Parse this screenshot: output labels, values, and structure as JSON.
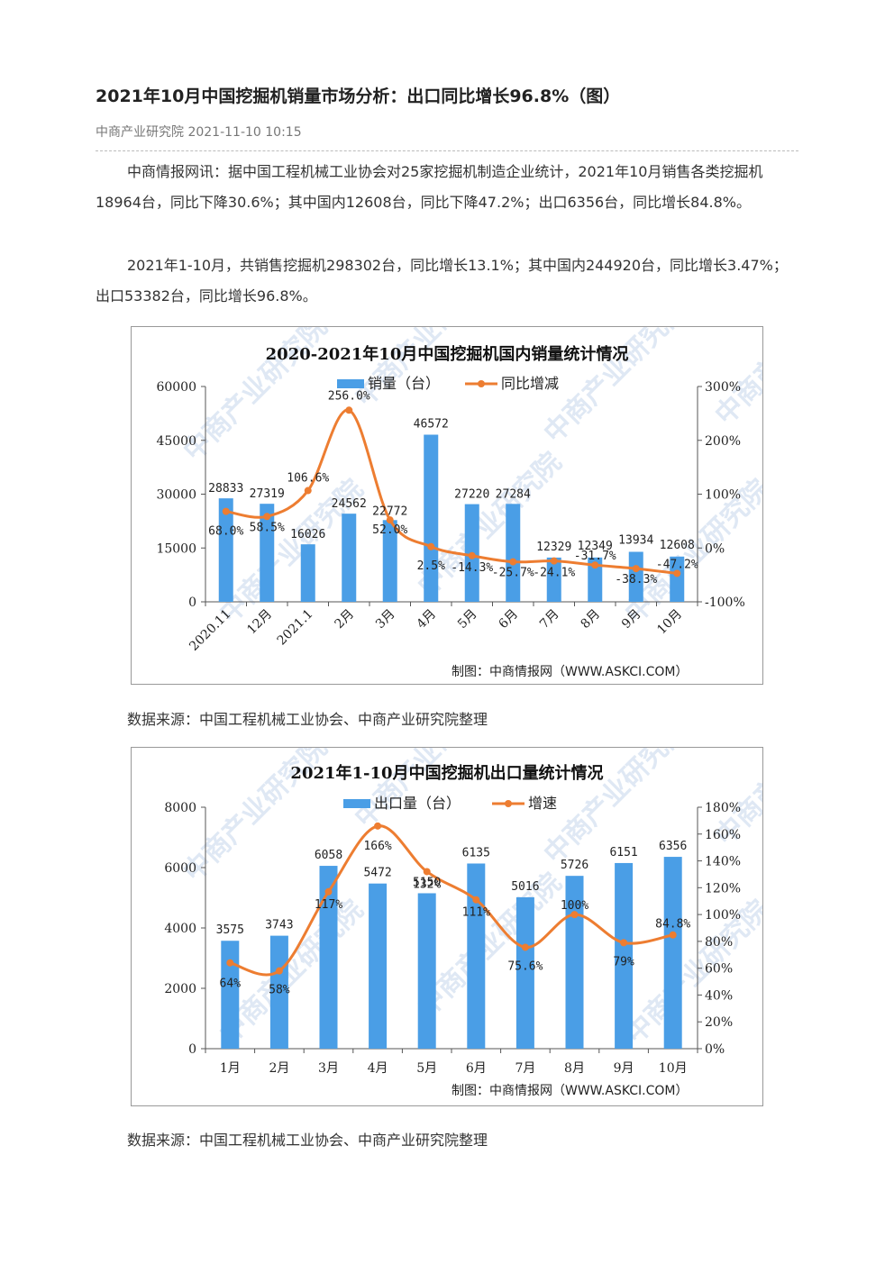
{
  "article": {
    "title": "2021年10月中国挖掘机销量市场分析：出口同比增长96.8%（图）",
    "meta": "中商产业研究院 2021-11-10 10:15",
    "paragraph1": "中商情报网讯：据中国工程机械工业协会对25家挖掘机制造企业统计，2021年10月销售各类挖掘机18964台，同比下降30.6%；其中国内12608台，同比下降47.2%；出口6356台，同比增长84.8%。",
    "paragraph2": "2021年1-10月，共销售挖掘机298302台，同比增长13.1%；其中国内244920台，同比增长3.47%；出口53382台，同比增长96.8%。",
    "source1": "数据来源：中国工程机械工业协会、中商产业研究院整理",
    "source2": "数据来源：中国工程机械工业协会、中商产业研究院整理"
  },
  "colors": {
    "bar": "#4a9ee6",
    "line": "#ed7d31",
    "watermark": "#dfe8f4"
  },
  "watermark_text": "中商产业研究院",
  "chart_data": [
    {
      "type": "bar",
      "title": "2020-2021年10月中国挖掘机国内销量统计情况",
      "credit": "制图：中商情报网（WWW.ASKCI.COM）",
      "categories": [
        "2020.11",
        "12月",
        "2021.1",
        "2月",
        "3月",
        "4月",
        "5月",
        "6月",
        "7月",
        "8月",
        "9月",
        "10月"
      ],
      "series": [
        {
          "name": "销量（台）",
          "axis": "left",
          "kind": "bar",
          "values": [
            28833,
            27319,
            16026,
            24562,
            22772,
            46572,
            27220,
            27284,
            12329,
            12349,
            13934,
            12608
          ]
        },
        {
          "name": "同比增减",
          "axis": "right",
          "kind": "line",
          "values": [
            68.0,
            58.5,
            106.6,
            256.0,
            52.0,
            2.5,
            -14.3,
            -25.7,
            -24.1,
            -31.7,
            -38.3,
            -47.2
          ],
          "labels": [
            "68.0%",
            "58.5%",
            "106.6%",
            "256.0%",
            "52.0%",
            "2.5%",
            "-14.3%",
            "-25.7%",
            "-24.1%",
            "-31.7%",
            "-38.3%",
            "-47.2%"
          ]
        }
      ],
      "ylim_left": [
        0,
        60000
      ],
      "yticks_left": [
        "0",
        "15000",
        "30000",
        "45000",
        "60000"
      ],
      "ylim_right": [
        -100,
        300
      ],
      "yticks_right": [
        "-100%",
        "0%",
        "100%",
        "200%",
        "300%"
      ],
      "legend_position": "top",
      "grid": false
    },
    {
      "type": "bar",
      "title": "2021年1-10月中国挖掘机出口量统计情况",
      "credit": "制图：中商情报网（WWW.ASKCI.COM）",
      "categories": [
        "1月",
        "2月",
        "3月",
        "4月",
        "5月",
        "6月",
        "7月",
        "8月",
        "9月",
        "10月"
      ],
      "series": [
        {
          "name": "出口量（台）",
          "axis": "left",
          "kind": "bar",
          "values": [
            3575,
            3743,
            6058,
            5472,
            5150,
            6135,
            5016,
            5726,
            6151,
            6356
          ]
        },
        {
          "name": "增速",
          "axis": "right",
          "kind": "line",
          "values": [
            64,
            58,
            117,
            166,
            132,
            111,
            75.6,
            100,
            79,
            84.8
          ],
          "labels": [
            "64%",
            "58%",
            "117%",
            "166%",
            "132%",
            "111%",
            "75.6%",
            "100%",
            "79%",
            "84.8%"
          ]
        }
      ],
      "ylim_left": [
        0,
        8000
      ],
      "yticks_left": [
        "0",
        "2000",
        "4000",
        "6000",
        "8000"
      ],
      "ylim_right": [
        0,
        180
      ],
      "yticks_right": [
        "0%",
        "20%",
        "40%",
        "60%",
        "80%",
        "100%",
        "120%",
        "140%",
        "160%",
        "180%"
      ],
      "legend_position": "top",
      "grid": false
    }
  ]
}
